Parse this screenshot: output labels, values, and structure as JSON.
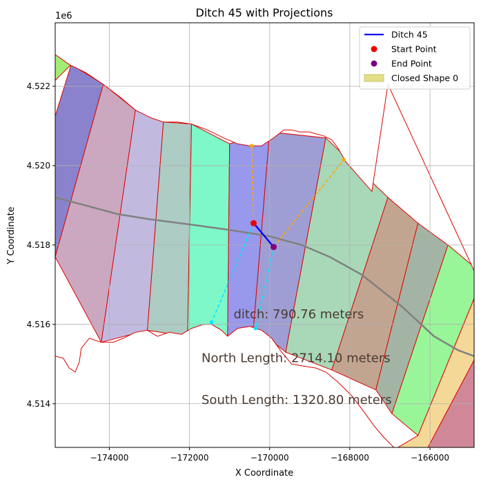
{
  "chart_data": {
    "type": "map-plot",
    "title": "Ditch 45 with Projections",
    "xlabel": "X Coordinate",
    "ylabel": "Y Coordinate",
    "y_offset_label": "1e6",
    "xlim": [
      -175350,
      -164900
    ],
    "ylim": [
      4512900,
      4523600
    ],
    "grid": true,
    "xticks": [
      {
        "value": -174000,
        "label": "−174000"
      },
      {
        "value": -172000,
        "label": "−172000"
      },
      {
        "value": -170000,
        "label": "−170000"
      },
      {
        "value": -168000,
        "label": "−168000"
      },
      {
        "value": -166000,
        "label": "−166000"
      }
    ],
    "yticks": [
      {
        "value": 4514000,
        "label": "4.514"
      },
      {
        "value": 4516000,
        "label": "4.516"
      },
      {
        "value": 4518000,
        "label": "4.518"
      },
      {
        "value": 4520000,
        "label": "4.520"
      },
      {
        "value": 4522000,
        "label": "4.522"
      }
    ],
    "legend": {
      "placement": "top-right",
      "entries": [
        {
          "label": "Ditch 45",
          "kind": "line",
          "color": "#0000ee"
        },
        {
          "label": "Start Point",
          "kind": "dot",
          "color": "#ee0000"
        },
        {
          "label": "End Point",
          "kind": "dot",
          "color": "#800080"
        },
        {
          "label": "Closed Shape 0",
          "kind": "patch",
          "color": "#e2df86"
        }
      ]
    },
    "outline": [
      [
        -175350,
        4522800
      ],
      [
        -175000,
        4522550
      ],
      [
        -174600,
        4522350
      ],
      [
        -174150,
        4522050
      ],
      [
        -173700,
        4521700
      ],
      [
        -173350,
        4521400
      ],
      [
        -172950,
        4521200
      ],
      [
        -172650,
        4521100
      ],
      [
        -172300,
        4521100
      ],
      [
        -171950,
        4521050
      ],
      [
        -171550,
        4520900
      ],
      [
        -171150,
        4520700
      ],
      [
        -170800,
        4520550
      ],
      [
        -170500,
        4520500
      ],
      [
        -170200,
        4520500
      ],
      [
        -169900,
        4520700
      ],
      [
        -169650,
        4520900
      ],
      [
        -169450,
        4520900
      ],
      [
        -169250,
        4520850
      ],
      [
        -169000,
        4520850
      ],
      [
        -168850,
        4520800
      ],
      [
        -168650,
        4520750
      ],
      [
        -168450,
        4520650
      ],
      [
        -168300,
        4520450
      ],
      [
        -168100,
        4520100
      ],
      [
        -167800,
        4519750
      ],
      [
        -167450,
        4519350
      ],
      [
        -167050,
        4522050
      ],
      [
        -164900,
        4517350
      ],
      [
        -164900,
        4512900
      ],
      [
        -166900,
        4512900
      ],
      [
        -167150,
        4513150
      ],
      [
        -167400,
        4513450
      ],
      [
        -167650,
        4513800
      ],
      [
        -167950,
        4514200
      ],
      [
        -168300,
        4514550
      ],
      [
        -168600,
        4514800
      ],
      [
        -168850,
        4514900
      ],
      [
        -169150,
        4514950
      ],
      [
        -169450,
        4515000
      ],
      [
        -169700,
        4515300
      ],
      [
        -169950,
        4515650
      ],
      [
        -170200,
        4515850
      ],
      [
        -170500,
        4515950
      ],
      [
        -170800,
        4515900
      ],
      [
        -171050,
        4515700
      ],
      [
        -171200,
        4515850
      ],
      [
        -171450,
        4516000
      ],
      [
        -171650,
        4516000
      ],
      [
        -171950,
        4515900
      ],
      [
        -172200,
        4515750
      ],
      [
        -172500,
        4515800
      ],
      [
        -172800,
        4515700
      ],
      [
        -173050,
        4515850
      ],
      [
        -173350,
        4515800
      ],
      [
        -173650,
        4515650
      ],
      [
        -173900,
        4515550
      ],
      [
        -174200,
        4515550
      ],
      [
        -174500,
        4515650
      ],
      [
        -174700,
        4515400
      ],
      [
        -174750,
        4515050
      ],
      [
        -174850,
        4514800
      ],
      [
        -175000,
        4514900
      ],
      [
        -175150,
        4515150
      ],
      [
        -175350,
        4515200
      ]
    ],
    "strips": [
      {
        "color": "#a4ed74",
        "boundary": [
          [
            -175350,
            4522800
          ],
          [
            -175350,
            4522150
          ],
          [
            -174950,
            4522550
          ]
        ]
      },
      {
        "color": "#8a82cc",
        "boundary": [
          [
            -175350,
            4521250
          ],
          [
            -174950,
            4522550
          ],
          [
            -174150,
            4522050
          ],
          [
            -175350,
            4517700
          ]
        ]
      },
      {
        "color": "#cca8c0",
        "boundary": [
          [
            -175350,
            4517700
          ],
          [
            -174150,
            4522050
          ],
          [
            -173350,
            4521400
          ],
          [
            -174200,
            4515550
          ]
        ]
      },
      {
        "color": "#c2b9df",
        "boundary": [
          [
            -174200,
            4515550
          ],
          [
            -173350,
            4521400
          ],
          [
            -172650,
            4521100
          ],
          [
            -173050,
            4515850
          ]
        ]
      },
      {
        "color": "#acccc4",
        "boundary": [
          [
            -173050,
            4515850
          ],
          [
            -172650,
            4521100
          ],
          [
            -171950,
            4521050
          ],
          [
            -172050,
            4515700
          ]
        ]
      },
      {
        "color": "#7ef8c8",
        "boundary": [
          [
            -172050,
            4515700
          ],
          [
            -171950,
            4521050
          ],
          [
            -171000,
            4520550
          ],
          [
            -171050,
            4515700
          ]
        ]
      },
      {
        "color": "#9898ec",
        "boundary": [
          [
            -171050,
            4515700
          ],
          [
            -171000,
            4520550
          ],
          [
            -170000,
            4520850
          ],
          [
            -170400,
            4515950
          ]
        ]
      },
      {
        "color": "#9e9ed4",
        "boundary": [
          [
            -170400,
            4515950
          ],
          [
            -170000,
            4520850
          ],
          [
            -168600,
            4520700
          ],
          [
            -169600,
            4515300
          ]
        ]
      },
      {
        "color": "#a8d8b8",
        "boundary": [
          [
            -169600,
            4515300
          ],
          [
            -168600,
            4520700
          ],
          [
            -167050,
            4519200
          ],
          [
            -168450,
            4514850
          ]
        ]
      },
      {
        "color": "#c2a590",
        "boundary": [
          [
            -168450,
            4514850
          ],
          [
            -167050,
            4519200
          ],
          [
            -166300,
            4518550
          ],
          [
            -167350,
            4514350
          ]
        ]
      },
      {
        "color": "#a4b4a4",
        "boundary": [
          [
            -167350,
            4514350
          ],
          [
            -166300,
            4518550
          ],
          [
            -165550,
            4518000
          ],
          [
            -166950,
            4513750
          ]
        ]
      },
      {
        "color": "#98f698",
        "boundary": [
          [
            -166950,
            4513750
          ],
          [
            -165550,
            4518000
          ],
          [
            -164900,
            4517450
          ],
          [
            -164900,
            4516650
          ],
          [
            -166300,
            4513200
          ]
        ]
      },
      {
        "color": "#f4d898",
        "boundary": [
          [
            -166300,
            4513200
          ],
          [
            -164900,
            4516650
          ],
          [
            -164900,
            4515100
          ],
          [
            -166050,
            4512900
          ],
          [
            -166800,
            4512900
          ]
        ]
      },
      {
        "color": "#d08898",
        "boundary": [
          [
            -166050,
            4512900
          ],
          [
            -164900,
            4515100
          ],
          [
            -164900,
            4512900
          ]
        ]
      }
    ],
    "centerline": [
      [
        -175350,
        4519200
      ],
      [
        -174600,
        4519000
      ],
      [
        -173800,
        4518780
      ],
      [
        -173000,
        4518650
      ],
      [
        -172000,
        4518520
      ],
      [
        -171000,
        4518380
      ],
      [
        -170000,
        4518220
      ],
      [
        -169200,
        4518000
      ],
      [
        -168500,
        4517700
      ],
      [
        -167700,
        4517250
      ],
      [
        -166700,
        4516450
      ],
      [
        -165900,
        4515700
      ],
      [
        -165300,
        4515350
      ],
      [
        -164900,
        4515200
      ]
    ],
    "ditch": {
      "start": [
        -170400,
        4518550
      ],
      "end": [
        -169900,
        4517950
      ],
      "color": "#0000ee"
    },
    "projections_north": [
      [
        [
          -170400,
          4518550
        ],
        [
          -170450,
          4520500
        ]
      ],
      [
        [
          -169900,
          4517950
        ],
        [
          -168150,
          4520150
        ]
      ]
    ],
    "projections_south": [
      [
        [
          -170400,
          4518550
        ],
        [
          -171450,
          4516050
        ]
      ],
      [
        [
          -169900,
          4517950
        ],
        [
          -170350,
          4515900
        ]
      ]
    ],
    "projection_colors": {
      "north": "#ffa500",
      "south": "#00e5ff"
    },
    "annotations": [
      {
        "text": "ditch: 790.76 meters",
        "x": -170900,
        "y": 4516150
      },
      {
        "text": "North Length: 2714.10 meters",
        "x": -171700,
        "y": 4515050
      },
      {
        "text": "South Length: 1320.80 meters",
        "x": -171700,
        "y": 4514000
      }
    ]
  }
}
